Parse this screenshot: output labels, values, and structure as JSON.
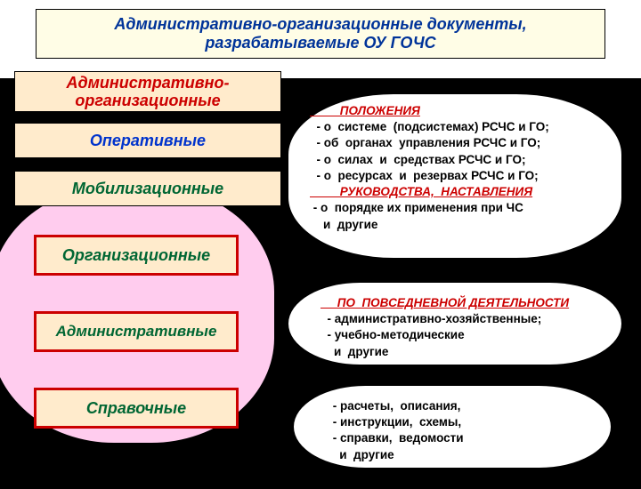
{
  "title": {
    "line1": "Административно-организационные документы,",
    "line2": "разрабатываемые  ОУ  ГОЧС"
  },
  "panels": {
    "admorg": "Административно-\nорганизационные",
    "oper": "Оперативные",
    "mobil": "Мобилизационные"
  },
  "categories": {
    "cat1": "Организационные",
    "cat2": "Административные",
    "cat3": "Справочные"
  },
  "cloud1": {
    "hdr1": "         ПОЛОЖЕНИЯ",
    "l1": "  - о  системе  (подсистемах) РСЧС и ГО;",
    "l2": "  - об  органах  управления РСЧС и ГО;",
    "l3": "  - о  силах  и  средствах РСЧС и ГО;",
    "l4": "  - о  ресурсах  и  резервах РСЧС и ГО;",
    "hdr2": "         РУКОВОДСТВА,  НАСТАВЛЕНИЯ",
    "l5": " - о  порядке их применения при ЧС",
    "l6": "    и  другие"
  },
  "cloud2": {
    "hdr": "     ПО  ПОВСЕДНЕВНОЙ ДЕЯТЕЛЬНОСТИ",
    "l1": "  - административно-хозяйственные;",
    "l2": "  - учебно-методические",
    "l3": "    и  другие"
  },
  "cloud3": {
    "l1": " - расчеты,  описания,",
    "l2": " - инструкции,  схемы,",
    "l3": " - справки,  ведомости",
    "l4": "   и  другие"
  },
  "colors": {
    "titleText": "#003399",
    "titleBg": "#fffde6",
    "panelBg": "#ffebcc",
    "panelAdmorg": "#cc0000",
    "panelOper": "#0033cc",
    "panelMobil": "#006633",
    "bubble": "#ffccee",
    "catBorder": "#cc0000",
    "catText": "#006633",
    "cloudBg": "#ffffff",
    "background": "#000000"
  },
  "fonts": {
    "title": 18,
    "panel": 18,
    "cat": 18,
    "cloud": 13.5
  }
}
